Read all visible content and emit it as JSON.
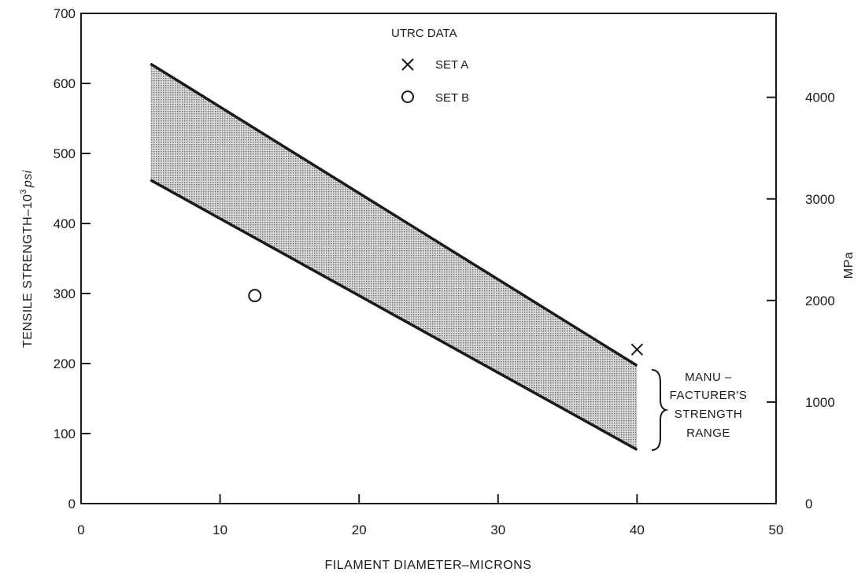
{
  "chart_data": {
    "type": "scatter",
    "xlabel": "FILAMENT DIAMETER–MICRONS",
    "ylabel_main": "TENSILE STRENGTH–10",
    "ylabel_sup": "3",
    "ylabel_unit": "psi",
    "y2label": "MPa",
    "xlim": [
      0,
      50
    ],
    "ylim": [
      0,
      700
    ],
    "y2lim_per_psi_k": 6.895,
    "x_ticks": [
      0,
      10,
      20,
      30,
      40,
      50
    ],
    "y_ticks": [
      0,
      100,
      200,
      300,
      400,
      500,
      600,
      700
    ],
    "y2_ticks": [
      0,
      1000,
      2000,
      3000,
      4000
    ],
    "band": {
      "upper": [
        [
          5,
          628
        ],
        [
          40,
          197
        ]
      ],
      "lower": [
        [
          5,
          462
        ],
        [
          40,
          77
        ]
      ]
    },
    "series": [
      {
        "name": "SET A",
        "marker": "x",
        "points": [
          [
            40,
            220
          ]
        ]
      },
      {
        "name": "SET B",
        "marker": "o",
        "points": [
          [
            12.5,
            297
          ]
        ]
      }
    ],
    "legend_title": "UTRC DATA",
    "annotation": [
      "MANU –",
      "FACTURER'S",
      "STRENGTH",
      "RANGE"
    ],
    "colors": {
      "ink": "#1a1a1a",
      "band_fill": "#9a9a9a"
    }
  }
}
